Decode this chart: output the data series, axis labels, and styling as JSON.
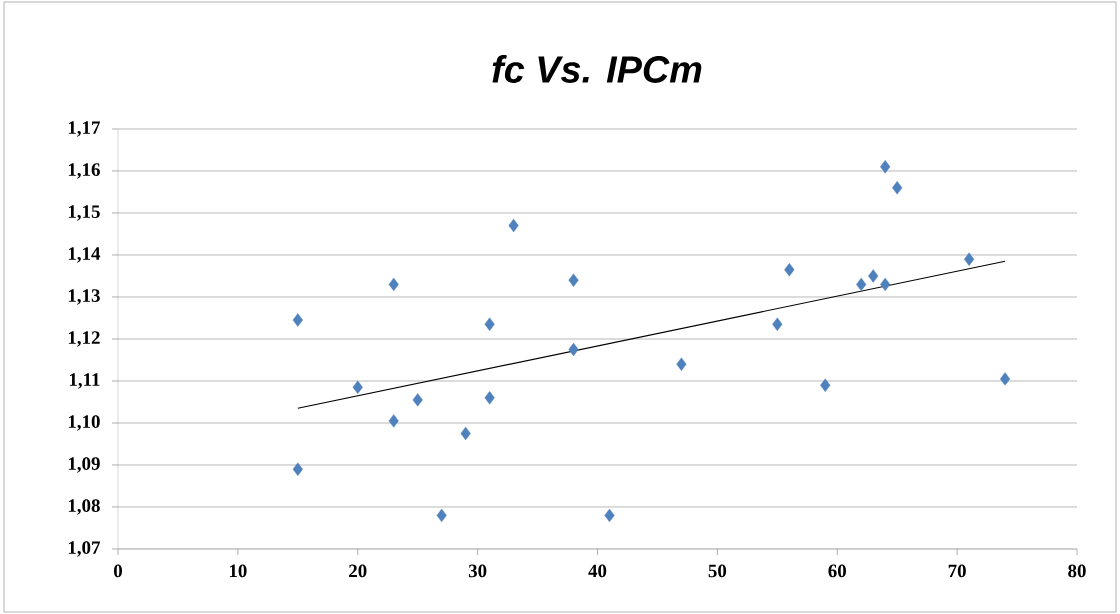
{
  "chart_data": {
    "type": "scatter",
    "title": "*fc Vs. IPCm*",
    "series": [
      {
        "color": "#4f81bd",
        "marker": "diamond",
        "x": [
          15,
          15,
          20,
          23,
          23,
          25,
          27,
          29,
          31,
          31,
          33,
          38,
          38,
          41,
          47,
          55,
          56,
          59,
          62,
          63,
          64,
          64,
          65,
          71,
          74
        ],
        "values": [
          1.1245,
          1.089,
          1.1085,
          1.133,
          1.1005,
          1.1055,
          1.078,
          1.0975,
          1.1235,
          1.106,
          1.147,
          1.134,
          1.1175,
          1.078,
          1.114,
          1.1235,
          1.1365,
          1.109,
          1.133,
          1.135,
          1.161,
          1.133,
          1.156,
          1.139,
          1.1105
        ]
      },
      {
        "type": "line",
        "color": "#000000",
        "marker": "none",
        "x": [
          15,
          74
        ],
        "values": [
          1.1035,
          1.1385
        ]
      }
    ],
    "xlim": [
      0,
      80
    ],
    "xticks": [
      0,
      10,
      20,
      30,
      40,
      50,
      60,
      70,
      80
    ],
    "ylim": [
      1.07,
      1.17
    ],
    "yticks": [
      {
        "value": 1.07,
        "label": "1,07"
      },
      {
        "value": 1.08,
        "label": "1,08"
      },
      {
        "value": 1.09,
        "label": "1,09"
      },
      {
        "value": 1.1,
        "label": "1,10"
      },
      {
        "value": 1.11,
        "label": "1,11"
      },
      {
        "value": 1.12,
        "label": "1,12"
      },
      {
        "value": 1.13,
        "label": "1,13"
      },
      {
        "value": 1.14,
        "label": "1,14"
      },
      {
        "value": 1.15,
        "label": "1,15"
      },
      {
        "value": 1.16,
        "label": "1,16"
      },
      {
        "value": 1.17,
        "label": "1,17"
      }
    ],
    "grid": "y"
  }
}
